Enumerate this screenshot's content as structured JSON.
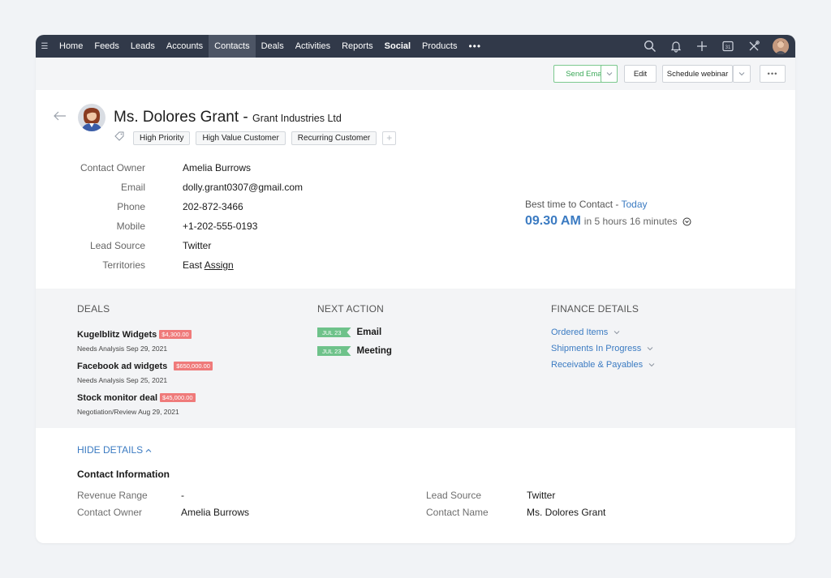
{
  "nav": {
    "items": [
      {
        "label": "Home",
        "active": false,
        "bold": false
      },
      {
        "label": "Feeds",
        "active": false,
        "bold": false
      },
      {
        "label": "Leads",
        "active": false,
        "bold": false
      },
      {
        "label": "Accounts",
        "active": false,
        "bold": false
      },
      {
        "label": "Contacts",
        "active": true,
        "bold": false
      },
      {
        "label": "Deals",
        "active": false,
        "bold": false
      },
      {
        "label": "Activities",
        "active": false,
        "bold": false
      },
      {
        "label": "Reports",
        "active": false,
        "bold": false
      },
      {
        "label": "Social",
        "active": false,
        "bold": true
      },
      {
        "label": "Products",
        "active": false,
        "bold": false
      }
    ],
    "more": "•••",
    "icons": [
      "search-icon",
      "bell-icon",
      "plus-icon",
      "calendar-icon",
      "tools-icon",
      "user-avatar"
    ],
    "calendar_day": "31"
  },
  "toolbar": {
    "send_email": "Send Email",
    "edit": "Edit",
    "schedule_webinar": "Schedule webinar",
    "more": "•••"
  },
  "contact": {
    "name": "Ms. Dolores Grant - ",
    "company": "Grant Industries Ltd",
    "tags": [
      "High Priority",
      "High Value Customer",
      "Recurring Customer"
    ],
    "tag_add": "+",
    "fields": [
      {
        "label": "Contact Owner",
        "value": "Amelia Burrows"
      },
      {
        "label": "Email",
        "value": "dolly.grant0307@gmail.com"
      },
      {
        "label": "Phone",
        "value": "202-872-3466"
      },
      {
        "label": "Mobile",
        "value": "+1-202-555-0193"
      },
      {
        "label": "Lead Source",
        "value": "Twitter"
      },
      {
        "label": "Territories",
        "value": "East",
        "link": "Assign"
      }
    ]
  },
  "best_time": {
    "label": "Best time to Contact - ",
    "day": "Today",
    "time": "09.30 AM",
    "relative": "in 5 hours 16 minutes"
  },
  "deals": {
    "title": "DEALS",
    "items": [
      {
        "name": "Kugelblitz Widgets",
        "amount": "$4,300.00",
        "stage": "Needs Analysis Sep 29, 2021"
      },
      {
        "name": "Facebook ad widgets",
        "amount": "$650,000.00",
        "stage": "Needs Analysis Sep 25, 2021"
      },
      {
        "name": "Stock monitor deal",
        "amount": "$45,000.00",
        "stage": "Negotiation/Review Aug 29, 2021"
      }
    ]
  },
  "next_action": {
    "title": "NEXT ACTION",
    "items": [
      {
        "date": "JUL 23",
        "label": "Email"
      },
      {
        "date": "JUL 23",
        "label": "Meeting"
      }
    ]
  },
  "finance": {
    "title": "FINANCE DETAILS",
    "links": [
      "Ordered Items",
      "Shipments In Progress",
      "Receivable & Payables"
    ]
  },
  "details": {
    "toggle": "HIDE DETAILS",
    "section_title": "Contact Information",
    "left": [
      {
        "label": "Revenue Range",
        "value": "-"
      },
      {
        "label": "Contact Owner",
        "value": "Amelia Burrows"
      }
    ],
    "right": [
      {
        "label": "Lead Source",
        "value": "Twitter"
      },
      {
        "label": "Contact Name",
        "value": "Ms. Dolores Grant"
      }
    ]
  },
  "colors": {
    "nav_bg": "#313949",
    "accent_blue": "#3b7bc2",
    "deal_amount": "#ef7a7a",
    "date_tag": "#6ec28a"
  }
}
